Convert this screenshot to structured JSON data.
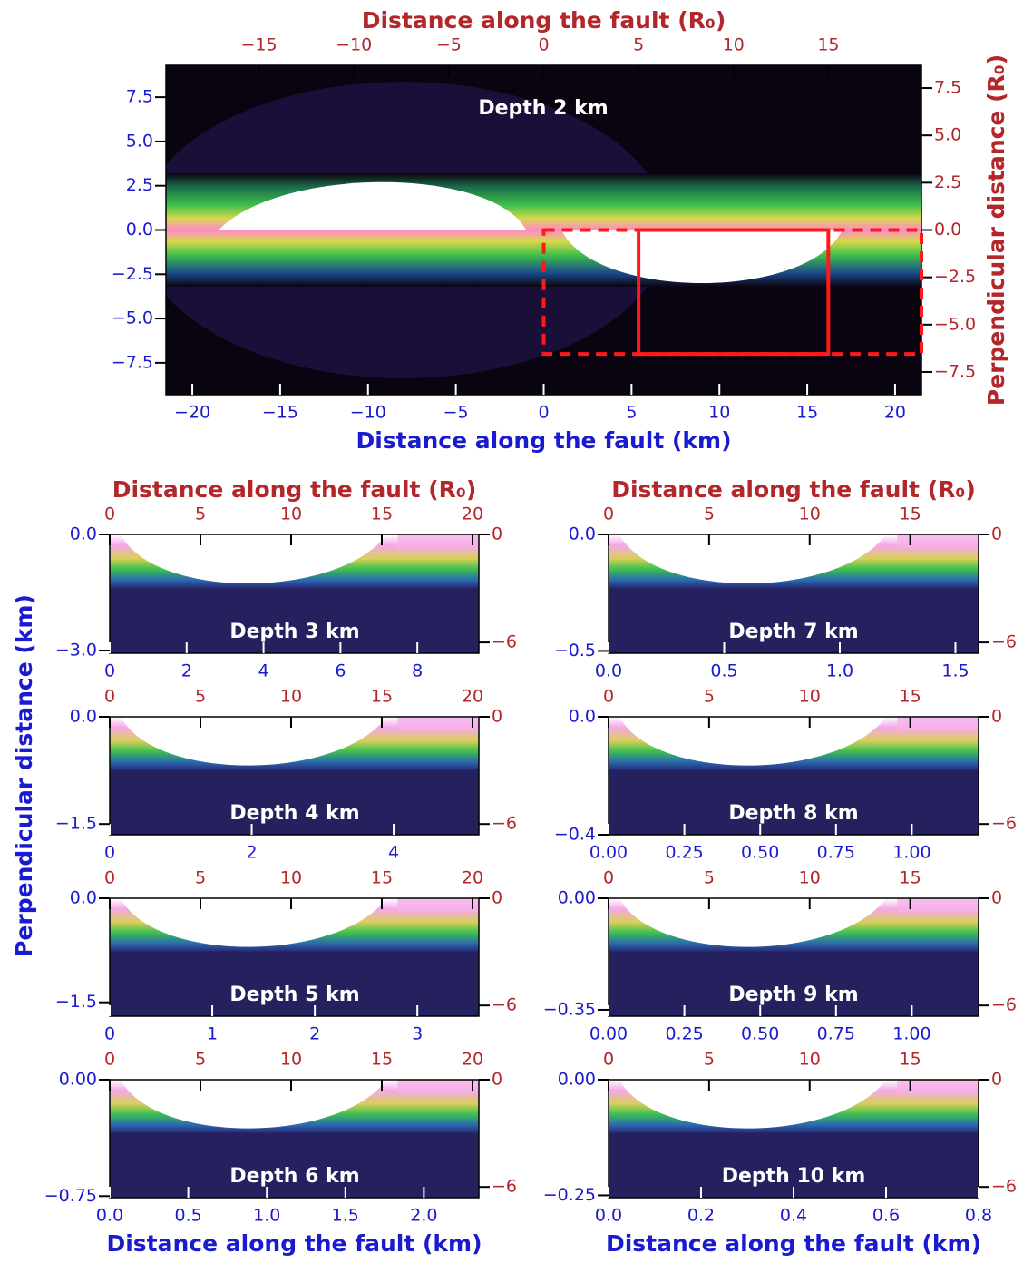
{
  "chart_data": [
    {
      "type": "heatmap",
      "label": "Depth 2 km",
      "xlabel": "Distance along the fault (km)",
      "x2label": "Distance along the fault (R₀)",
      "y2label": "Perpendicular distance (R₀)",
      "xlim": [
        -21.5,
        21.5
      ],
      "xticks": [
        {
          "value": -20,
          "label": "−20"
        },
        {
          "value": -15,
          "label": "−15"
        },
        {
          "value": -10,
          "label": "−10"
        },
        {
          "value": -5,
          "label": "−5"
        },
        0,
        5,
        10,
        15,
        20
      ],
      "x2lim": [
        -19.9,
        19.9
      ],
      "x2ticks": [
        {
          "value": -15,
          "label": "−15"
        },
        {
          "value": -10,
          "label": "−10"
        },
        {
          "value": -5,
          "label": "−5"
        },
        0,
        5,
        10,
        15
      ],
      "ylim": [
        -9.3,
        9.3
      ],
      "yticks": [
        7.5,
        {
          "value": 5,
          "label": "5.0"
        },
        2.5,
        {
          "value": 0,
          "label": "0.0"
        },
        {
          "value": -2.5,
          "label": "−2.5"
        },
        {
          "value": -5,
          "label": "−5.0"
        },
        {
          "value": -7.5,
          "label": "−7.5"
        }
      ],
      "y2lim": [
        -8.7,
        8.7
      ],
      "y2ticks": [
        7.5,
        {
          "value": 5,
          "label": "5.0"
        },
        2.5,
        {
          "value": 0,
          "label": "0.0"
        },
        {
          "value": -2.5,
          "label": "−2.5"
        },
        {
          "value": -5,
          "label": "−5.0"
        },
        {
          "value": -7.5,
          "label": "−7.5"
        }
      ],
      "regions": [
        {
          "x": [
            0,
            21.5
          ],
          "y": [
            -7,
            0
          ],
          "style": "dashed"
        },
        {
          "x": [
            5.4,
            16.2
          ],
          "y": [
            -7,
            0
          ],
          "style": "solid"
        }
      ]
    },
    {
      "type": "heatmap",
      "label": "Depth 3 km",
      "x2label": "Distance along the fault (R₀)",
      "ylabel": "Perpendicular distance (km)",
      "xlim": [
        0,
        9.6
      ],
      "xticks": [
        0,
        2,
        4,
        6,
        8
      ],
      "x2lim": [
        0,
        20.35
      ],
      "x2ticks": [
        0,
        5,
        10,
        15,
        20
      ],
      "ylim": [
        -3.07,
        0
      ],
      "yticks": [
        {
          "value": 0,
          "label": "0.0"
        },
        {
          "value": -3,
          "label": "−3.0"
        }
      ],
      "y2lim": [
        -6.6,
        0
      ],
      "y2ticks": [
        0,
        {
          "value": -6,
          "label": "−6"
        }
      ]
    },
    {
      "type": "heatmap",
      "label": "Depth 4 km",
      "xlim": [
        0,
        5.2
      ],
      "xticks": [
        0,
        2,
        4
      ],
      "x2lim": [
        0,
        20.35
      ],
      "x2ticks": [
        0,
        5,
        10,
        15,
        20
      ],
      "ylim": [
        -1.65,
        0
      ],
      "yticks": [
        {
          "value": 0,
          "label": "0.0"
        },
        {
          "value": -1.5,
          "label": "−1.5"
        }
      ],
      "y2lim": [
        -6.6,
        0
      ],
      "y2ticks": [
        0,
        {
          "value": -6,
          "label": "−6"
        }
      ]
    },
    {
      "type": "heatmap",
      "label": "Depth 5 km",
      "xlim": [
        0,
        3.6
      ],
      "xticks": [
        0,
        1,
        2,
        3
      ],
      "x2lim": [
        0,
        20.35
      ],
      "x2ticks": [
        0,
        5,
        10,
        15,
        20
      ],
      "ylim": [
        -1.7,
        0
      ],
      "yticks": [
        {
          "value": 0,
          "label": "0.0"
        },
        {
          "value": -1.5,
          "label": "−1.5"
        }
      ],
      "y2lim": [
        -6.6,
        0
      ],
      "y2ticks": [
        0,
        {
          "value": -6,
          "label": "−6"
        }
      ]
    },
    {
      "type": "heatmap",
      "label": "Depth 6 km",
      "xlabel": "Distance along the fault (km)",
      "xlim": [
        0,
        2.35
      ],
      "xticks": [
        {
          "value": 0,
          "label": "0.0"
        },
        0.5,
        {
          "value": 1,
          "label": "1.0"
        },
        1.5,
        {
          "value": 2,
          "label": "2.0"
        }
      ],
      "x2lim": [
        0,
        20.35
      ],
      "x2ticks": [
        0,
        5,
        10,
        15,
        20
      ],
      "ylim": [
        -0.76,
        0
      ],
      "yticks": [
        {
          "value": 0,
          "label": "0.00"
        },
        {
          "value": -0.75,
          "label": "−0.75"
        }
      ],
      "y2lim": [
        -6.6,
        0
      ],
      "y2ticks": [
        0,
        {
          "value": -6,
          "label": "−6"
        }
      ]
    },
    {
      "type": "heatmap",
      "label": "Depth 7 km",
      "x2label": "Distance along the fault (R₀)",
      "xlim": [
        0,
        1.6
      ],
      "xticks": [
        {
          "value": 0,
          "label": "0.0"
        },
        0.5,
        {
          "value": 1,
          "label": "1.0"
        },
        1.5
      ],
      "x2lim": [
        0,
        18.4
      ],
      "x2ticks": [
        0,
        5,
        10,
        15
      ],
      "ylim": [
        -0.51,
        0
      ],
      "yticks": [
        {
          "value": 0,
          "label": "0.0"
        },
        {
          "value": -0.5,
          "label": "−0.5"
        }
      ],
      "y2lim": [
        -6.6,
        0
      ],
      "y2ticks": [
        0,
        {
          "value": -6,
          "label": "−6"
        }
      ]
    },
    {
      "type": "heatmap",
      "label": "Depth 8 km",
      "xlim": [
        0,
        1.22
      ],
      "xticks": [
        {
          "value": 0,
          "label": "0.00"
        },
        0.25,
        {
          "value": 0.5,
          "label": "0.50"
        },
        0.75,
        {
          "value": 1,
          "label": "1.00"
        }
      ],
      "x2lim": [
        0,
        18.4
      ],
      "x2ticks": [
        0,
        5,
        10,
        15
      ],
      "ylim": [
        -0.4,
        0
      ],
      "yticks": [
        {
          "value": 0,
          "label": "0.0"
        },
        {
          "value": -0.4,
          "label": "−0.4"
        }
      ],
      "y2lim": [
        -6.6,
        0
      ],
      "y2ticks": [
        0,
        {
          "value": -6,
          "label": "−6"
        }
      ]
    },
    {
      "type": "heatmap",
      "label": "Depth 9 km",
      "xlim": [
        0,
        1.22
      ],
      "xticks": [
        {
          "value": 0,
          "label": "0.00"
        },
        0.25,
        {
          "value": 0.5,
          "label": "0.50"
        },
        0.75,
        {
          "value": 1,
          "label": "1.00"
        }
      ],
      "x2lim": [
        0,
        18.4
      ],
      "x2ticks": [
        0,
        5,
        10,
        15
      ],
      "ylim": [
        -0.37,
        0
      ],
      "yticks": [
        {
          "value": 0,
          "label": "0.00"
        },
        {
          "value": -0.35,
          "label": "−0.35"
        }
      ],
      "y2lim": [
        -6.6,
        0
      ],
      "y2ticks": [
        0,
        {
          "value": -6,
          "label": "−6"
        }
      ]
    },
    {
      "type": "heatmap",
      "label": "Depth 10 km",
      "xlabel": "Distance along the fault (km)",
      "xlim": [
        0,
        0.8
      ],
      "xticks": [
        {
          "value": 0,
          "label": "0.0"
        },
        0.2,
        0.4,
        0.6,
        0.8
      ],
      "x2lim": [
        0,
        18.4
      ],
      "x2ticks": [
        0,
        5,
        10,
        15
      ],
      "ylim": [
        -0.255,
        0
      ],
      "yticks": [
        {
          "value": 0,
          "label": "0.00"
        },
        {
          "value": -0.25,
          "label": "−0.25"
        }
      ],
      "y2lim": [
        -6.6,
        0
      ],
      "y2ticks": [
        0,
        {
          "value": -6,
          "label": "−6"
        }
      ]
    }
  ],
  "axis_colors": {
    "km": "#1a1ad0",
    "r0": "#b3262a",
    "region": "#ff1a1a"
  }
}
